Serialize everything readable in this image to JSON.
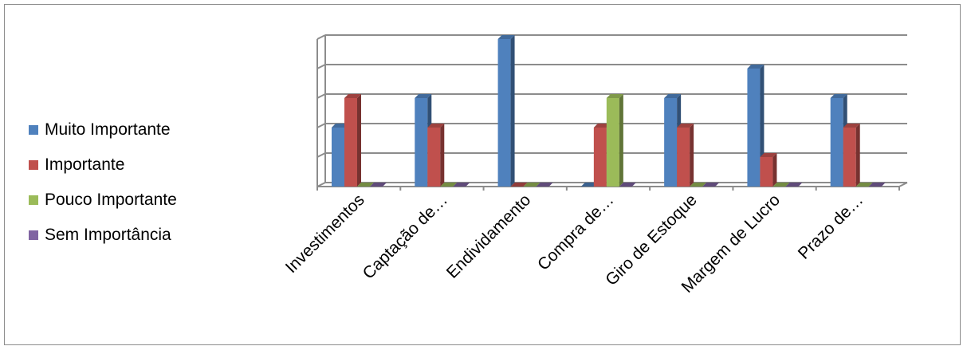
{
  "chart_data": {
    "type": "bar",
    "categories": [
      "Investimentos",
      "Captação de…",
      "Endividamento",
      "Compra de…",
      "Giro de Estoque",
      "Margem de Lucro",
      "Prazo de…"
    ],
    "series": [
      {
        "name": "Muito Importante",
        "color": "#4f81bd",
        "values": [
          2,
          3,
          5,
          0,
          3,
          4,
          3
        ]
      },
      {
        "name": "Importante",
        "color": "#c0504d",
        "values": [
          3,
          2,
          0,
          2,
          2,
          1,
          2
        ]
      },
      {
        "name": "Pouco Importante",
        "color": "#9bbb59",
        "values": [
          0,
          0,
          0,
          3,
          0,
          0,
          0
        ]
      },
      {
        "name": "Sem Importância",
        "color": "#8064a2",
        "values": [
          0,
          0,
          0,
          0,
          0,
          0,
          0
        ]
      }
    ],
    "ylim": [
      0,
      5
    ],
    "grid": true,
    "legend": "left"
  }
}
